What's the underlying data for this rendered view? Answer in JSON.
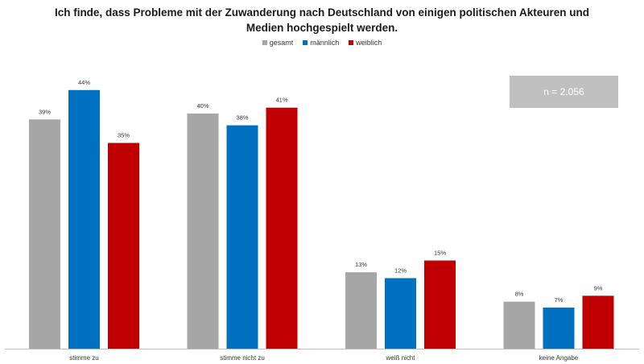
{
  "chart_data": {
    "type": "bar",
    "title_line1": "Ich finde, dass Probleme mit der Zuwanderung nach Deutschland von einigen politischen Akteuren und",
    "title_line2": "Medien hochgespielt werden.",
    "categories": [
      "stimme zu",
      "stimme nicht zu",
      "weiß nicht",
      "keine Angabe"
    ],
    "series": [
      {
        "name": "gesamt",
        "color": "#a6a6a6",
        "values": [
          39,
          40,
          13,
          8
        ],
        "labels": [
          "39%",
          "40%",
          "13%",
          "8%"
        ]
      },
      {
        "name": "männlich",
        "color": "#0070c0",
        "values": [
          44,
          38,
          12,
          7
        ],
        "labels": [
          "44%",
          "38%",
          "12%",
          "7%"
        ]
      },
      {
        "name": "weiblich",
        "color": "#c00000",
        "values": [
          35,
          41,
          15,
          9
        ],
        "labels": [
          "35%",
          "41%",
          "15%",
          "9%"
        ]
      }
    ],
    "annotation": "n = 2.056",
    "ylim": [
      0,
      50
    ],
    "grid": false,
    "legend_position": "top-center"
  }
}
